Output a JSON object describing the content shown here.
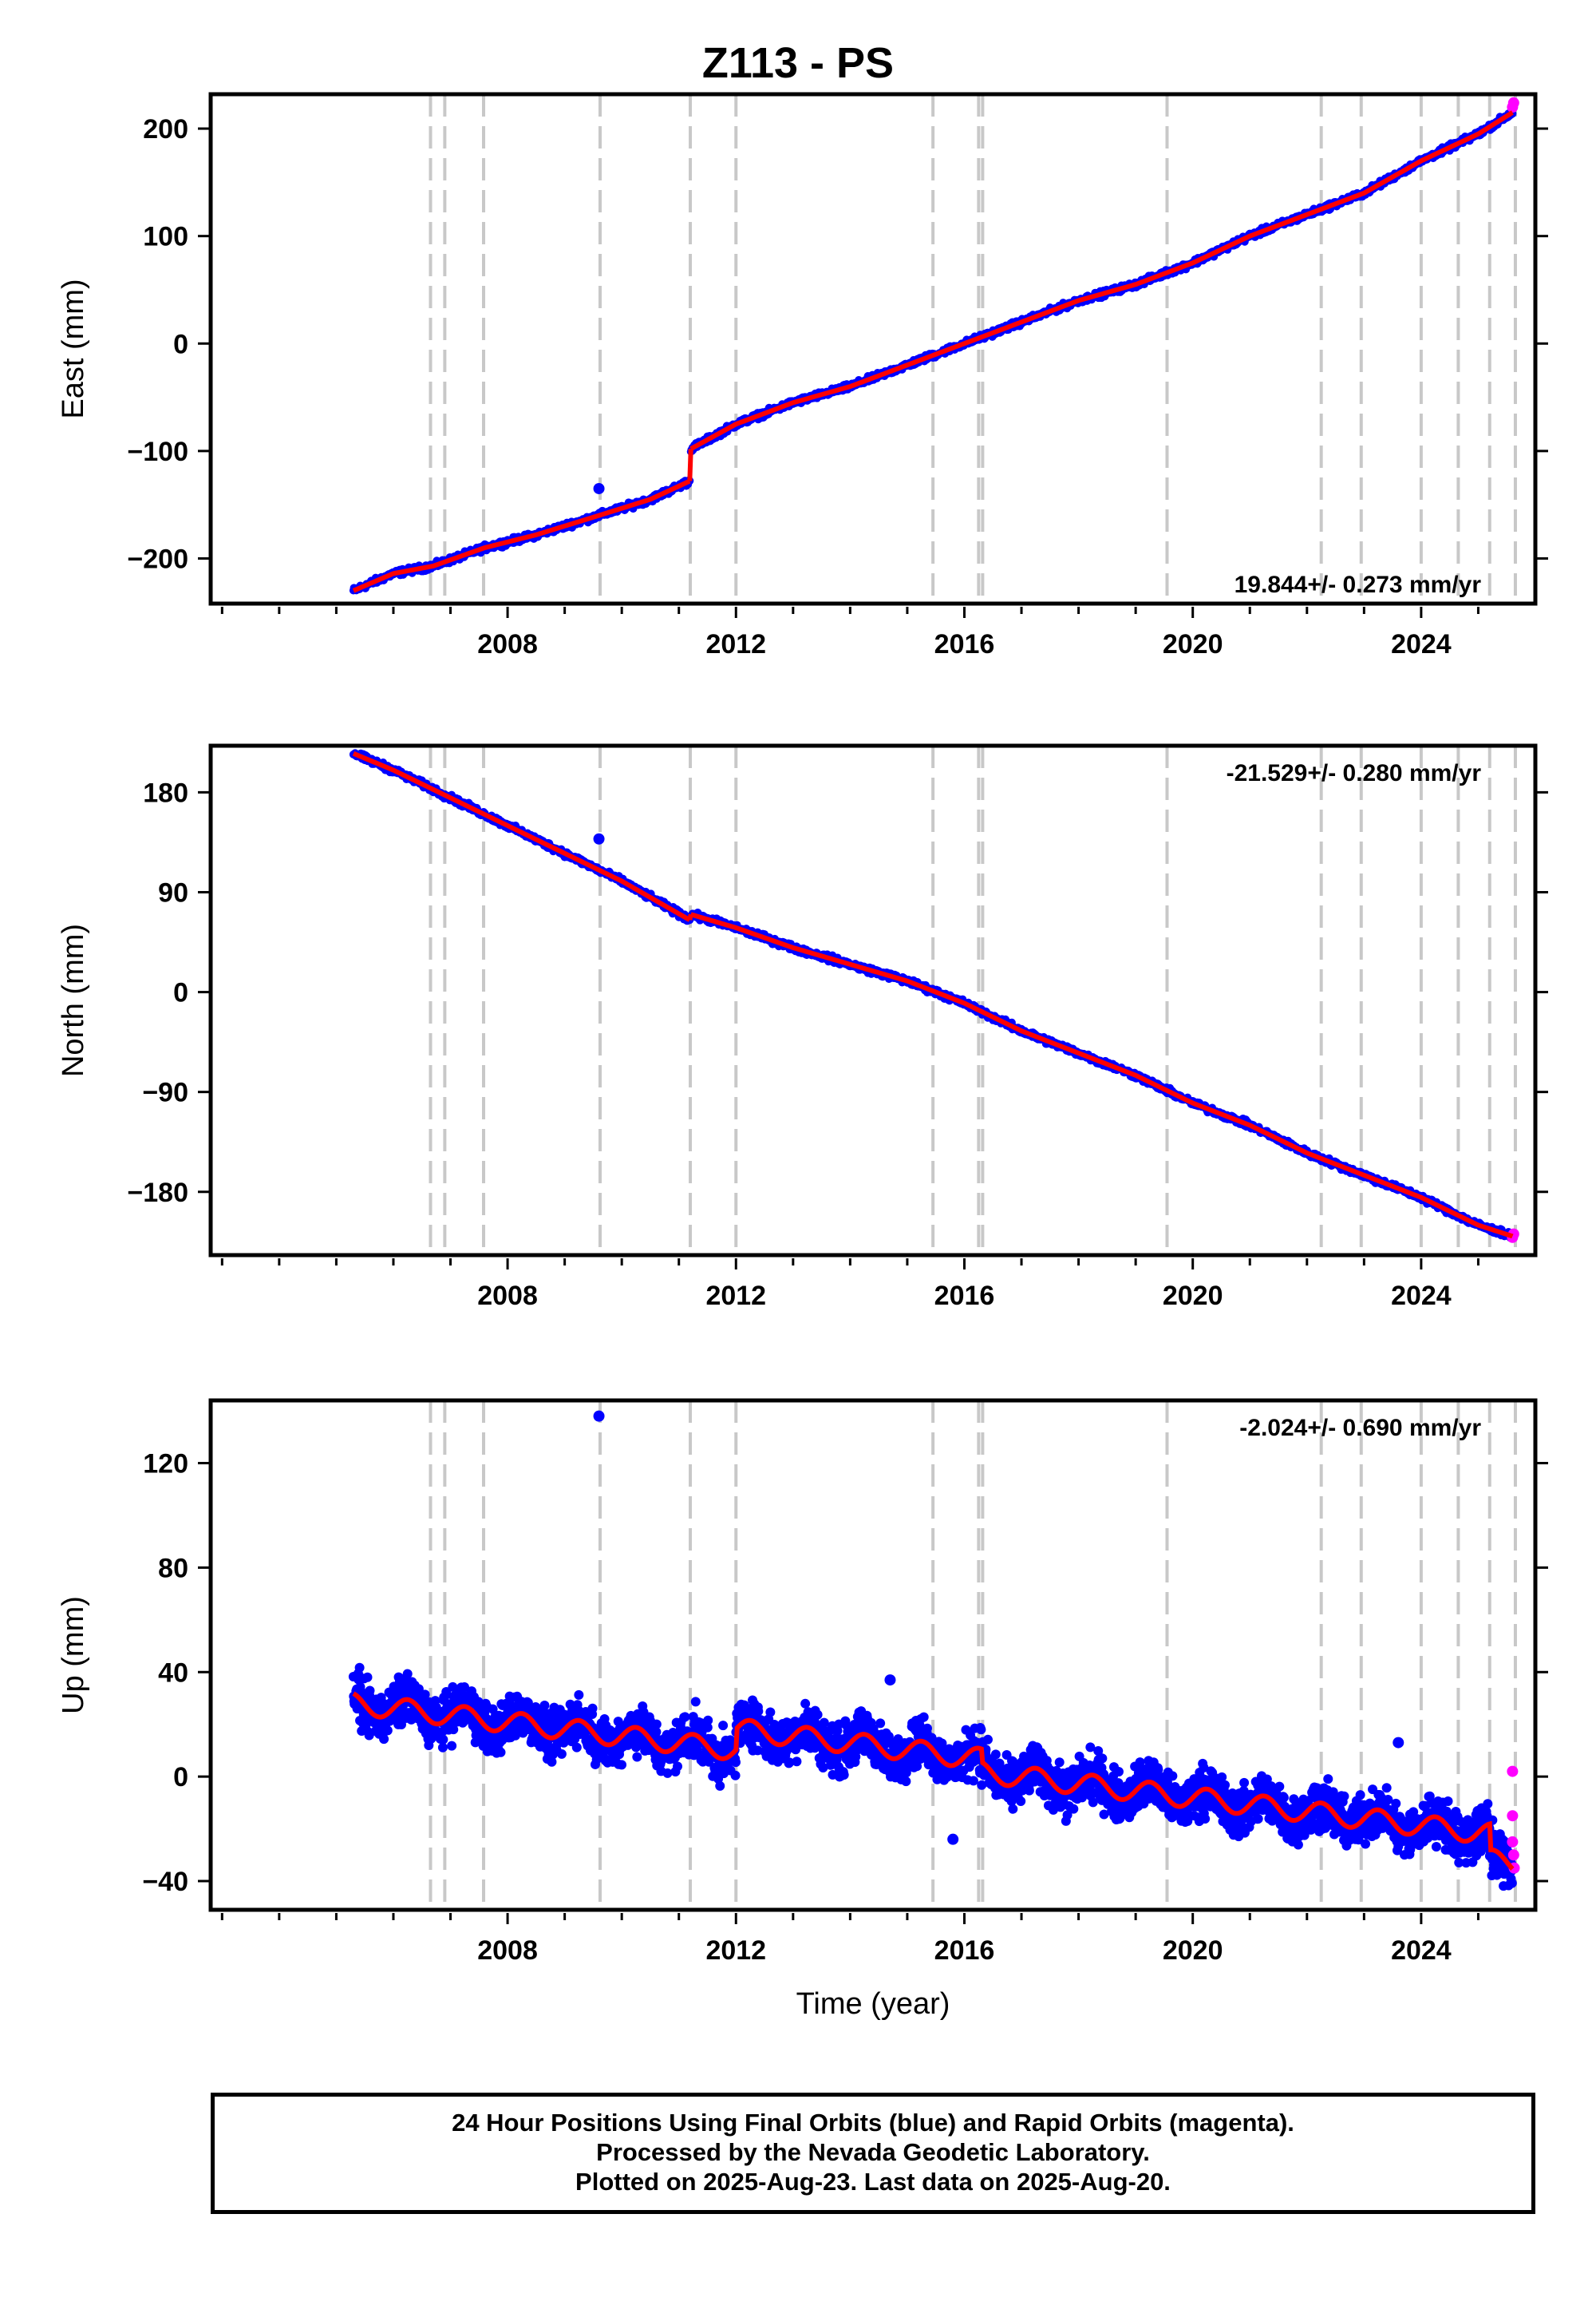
{
  "title": "Z113 - PS",
  "footer": {
    "line1": "24 Hour Positions Using Final Orbits (blue) and Rapid Orbits (magenta).",
    "line2": "Processed by the Nevada Geodetic Laboratory.",
    "line3": "Plotted on 2025-Aug-23. Last data on 2025-Aug-20."
  },
  "colors": {
    "final_orbits": "#0000ff",
    "rapid_orbits": "#ff00ff",
    "model": "#ff0000",
    "event_lines": "#c8c8c8"
  },
  "event_lines_years": [
    2006.65,
    2006.9,
    2007.58,
    2009.62,
    2011.2,
    2012.0,
    2015.45,
    2016.25,
    2016.32,
    2019.55,
    2022.25,
    2022.95,
    2024.0,
    2024.65,
    2025.2,
    2025.65
  ],
  "chart_data": [
    {
      "type": "scatter",
      "name": "east",
      "ylabel": "East (mm)",
      "xlabel": "",
      "xlim": [
        2002.8,
        2026.0
      ],
      "ylim": [
        -242,
        232
      ],
      "xticks": [
        2008,
        2012,
        2016,
        2020,
        2024
      ],
      "yticks": [
        -200,
        -100,
        0,
        100,
        200
      ],
      "ytick_labels": [
        "−200",
        "−100",
        "0",
        "100",
        "200"
      ],
      "velocity_label": "19.844+/- 0.273 mm/yr",
      "velocity_position": "bottom-right",
      "series": [
        {
          "x": [
            2005.3,
            2006.0,
            2006.7,
            2007.6,
            2008.5,
            2009.6,
            2010.5,
            2011.19
          ],
          "y": [
            -230,
            -214,
            -207,
            -190,
            -178,
            -160,
            -145,
            -128
          ],
          "marker_color": "final_orbits"
        },
        {
          "x": [
            2011.21,
            2012.0,
            2013.0,
            2014.0,
            2015.0,
            2016.0,
            2017.0,
            2018.0,
            2019.0,
            2020.0,
            2021.0,
            2022.0,
            2023.0,
            2024.0,
            2025.0,
            2025.6
          ],
          "y": [
            -98,
            -75,
            -55,
            -40,
            -20,
            0,
            20,
            40,
            55,
            75,
            100,
            120,
            140,
            170,
            195,
            215
          ],
          "marker_color": "final_orbits"
        }
      ],
      "rapid_points": [
        {
          "x": 2025.6,
          "y": 220
        },
        {
          "x": 2025.62,
          "y": 224
        }
      ],
      "outliers": [
        {
          "x": 2009.6,
          "y": -135
        }
      ]
    },
    {
      "type": "scatter",
      "name": "north",
      "ylabel": "North (mm)",
      "xlabel": "",
      "xlim": [
        2002.8,
        2026.0
      ],
      "ylim": [
        -237,
        222
      ],
      "xticks": [
        2008,
        2012,
        2016,
        2020,
        2024
      ],
      "yticks": [
        -180,
        -90,
        0,
        90,
        180
      ],
      "ytick_labels": [
        "−180",
        "−90",
        "0",
        "90",
        "180"
      ],
      "velocity_label": "-21.529+/- 0.280 mm/yr",
      "velocity_position": "top-right",
      "series": [
        {
          "x": [
            2005.3,
            2006.0,
            2007.0,
            2008.0,
            2009.0,
            2010.0,
            2011.19
          ],
          "y": [
            215,
            200,
            175,
            150,
            125,
            100,
            65
          ],
          "marker_color": "final_orbits"
        },
        {
          "x": [
            2011.21,
            2012.0,
            2013.0,
            2014.0,
            2015.0,
            2016.0,
            2017.0,
            2018.0,
            2019.0,
            2020.0,
            2021.0,
            2022.0,
            2023.0,
            2024.0,
            2025.0,
            2025.6
          ],
          "y": [
            70,
            58,
            40,
            25,
            10,
            -10,
            -35,
            -55,
            -75,
            -100,
            -120,
            -145,
            -165,
            -185,
            -210,
            -220
          ],
          "marker_color": "final_orbits"
        }
      ],
      "rapid_points": [
        {
          "x": 2025.6,
          "y": -221
        },
        {
          "x": 2025.62,
          "y": -218
        }
      ],
      "outliers": [
        {
          "x": 2009.6,
          "y": 138
        }
      ]
    },
    {
      "type": "scatter",
      "name": "up",
      "ylabel": "Up (mm)",
      "xlabel": "Time (year)",
      "xlim": [
        2002.8,
        2026.0
      ],
      "ylim": [
        -51,
        144
      ],
      "xticks": [
        2008,
        2012,
        2016,
        2020,
        2024
      ],
      "yticks": [
        -40,
        0,
        40,
        80,
        120
      ],
      "ytick_labels": [
        "−40",
        "0",
        "40",
        "80",
        "120"
      ],
      "velocity_label": "-2.024+/- 0.690 mm/yr",
      "velocity_position": "top-right",
      "trend": {
        "x": [
          2005.3,
          2025.6
        ],
        "y": [
          28,
          -26
        ]
      },
      "seasonal_amplitude": 4,
      "offsets": [
        {
          "x": 2012.0,
          "dy": 8
        },
        {
          "x": 2016.3,
          "dy": -5
        },
        {
          "x": 2025.2,
          "dy": -10
        }
      ],
      "scatter_spread": 11,
      "rapid_points": [
        {
          "x": 2025.6,
          "y": 2
        },
        {
          "x": 2025.6,
          "y": -15
        },
        {
          "x": 2025.62,
          "y": -30
        },
        {
          "x": 2025.63,
          "y": -35
        },
        {
          "x": 2025.6,
          "y": -25
        }
      ],
      "outliers": [
        {
          "x": 2009.6,
          "y": 138
        },
        {
          "x": 2015.8,
          "y": -24
        },
        {
          "x": 2014.7,
          "y": 37
        },
        {
          "x": 2023.6,
          "y": 13
        }
      ]
    }
  ]
}
